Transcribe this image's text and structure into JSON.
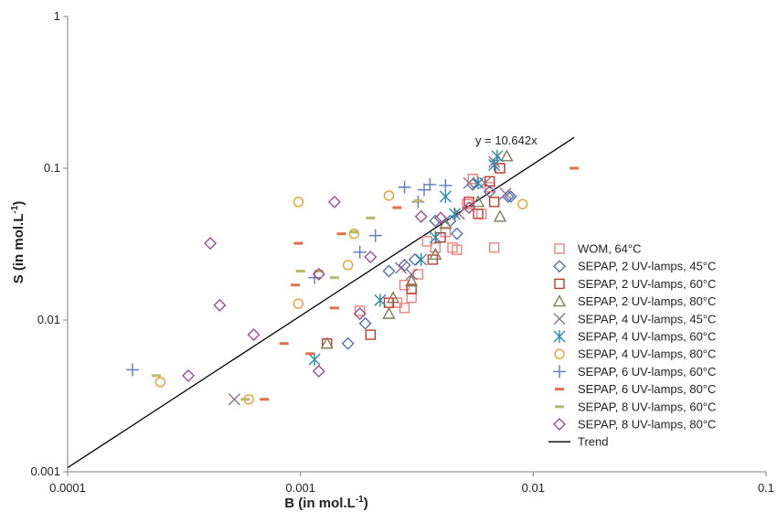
{
  "chart_data": {
    "type": "scatter",
    "x_scale": "log",
    "y_scale": "log",
    "xlim": [
      0.0001,
      0.1
    ],
    "ylim": [
      0.001,
      1
    ],
    "x_ticks": [
      "0.0001",
      "0.001",
      "0.01",
      "0.1"
    ],
    "y_ticks": [
      "0.001",
      "0.01",
      "0.1",
      "1"
    ],
    "xlabel": "B (in mol.L",
    "xlabel_sup": "-1",
    "xlabel_end": ")",
    "ylabel": "S (in mol.L",
    "ylabel_sup": "-1",
    "ylabel_end": ")",
    "grid": false,
    "legend_position": "bottom-right",
    "trend": {
      "name": "Trend",
      "slope": 10.642,
      "x_range": [
        0.0001,
        0.015
      ],
      "equation": "y = 10.642x",
      "color": "#000000"
    },
    "series": [
      {
        "name": "WOM, 64°C",
        "marker": "square",
        "color": "#f08080",
        "points": [
          [
            0.0018,
            0.0115
          ],
          [
            0.0026,
            0.013
          ],
          [
            0.0028,
            0.012
          ],
          [
            0.003,
            0.014
          ],
          [
            0.0032,
            0.02
          ],
          [
            0.0035,
            0.033
          ],
          [
            0.0038,
            0.03
          ],
          [
            0.0042,
            0.038
          ],
          [
            0.0045,
            0.03
          ],
          [
            0.0047,
            0.029
          ],
          [
            0.0052,
            0.058
          ],
          [
            0.0055,
            0.085
          ],
          [
            0.006,
            0.05
          ],
          [
            0.0065,
            0.075
          ],
          [
            0.0068,
            0.03
          ],
          [
            0.0072,
            0.1
          ],
          [
            0.0028,
            0.017
          ]
        ]
      },
      {
        "name": "SEPAP, 2 UV-lamps, 45°C",
        "marker": "diamond",
        "color": "#5a6fa8",
        "points": [
          [
            0.0016,
            0.007
          ],
          [
            0.0019,
            0.0095
          ],
          [
            0.0024,
            0.021
          ],
          [
            0.0028,
            0.023
          ],
          [
            0.0031,
            0.025
          ],
          [
            0.0038,
            0.045
          ],
          [
            0.0044,
            0.045
          ],
          [
            0.0047,
            0.037
          ],
          [
            0.0055,
            0.078
          ],
          [
            0.0065,
            0.07
          ],
          [
            0.0078,
            0.065
          ],
          [
            0.008,
            0.065
          ]
        ]
      },
      {
        "name": "SEPAP, 2 UV-lamps, 60°C",
        "marker": "square",
        "color": "#c0392b",
        "points": [
          [
            0.0013,
            0.007
          ],
          [
            0.002,
            0.008
          ],
          [
            0.0024,
            0.013
          ],
          [
            0.003,
            0.016
          ],
          [
            0.0037,
            0.025
          ],
          [
            0.004,
            0.035
          ],
          [
            0.0053,
            0.06
          ],
          [
            0.0058,
            0.05
          ],
          [
            0.0065,
            0.082
          ],
          [
            0.0072,
            0.1
          ],
          [
            0.0068,
            0.06
          ]
        ]
      },
      {
        "name": "SEPAP, 2 UV-lamps, 80°C",
        "marker": "triangle",
        "color": "#7f7f5a",
        "points": [
          [
            0.0013,
            0.007
          ],
          [
            0.0024,
            0.011
          ],
          [
            0.0025,
            0.014
          ],
          [
            0.003,
            0.018
          ],
          [
            0.0038,
            0.027
          ],
          [
            0.0042,
            0.043
          ],
          [
            0.0058,
            0.06
          ],
          [
            0.0072,
            0.048
          ],
          [
            0.0077,
            0.12
          ]
        ]
      },
      {
        "name": "SEPAP, 4 UV-lamps, 45°C",
        "marker": "x",
        "color": "#8e6f8e",
        "points": [
          [
            0.00052,
            0.003
          ],
          [
            0.0027,
            0.022
          ],
          [
            0.003,
            0.02
          ],
          [
            0.0048,
            0.05
          ],
          [
            0.0053,
            0.08
          ],
          [
            0.0062,
            0.08
          ],
          [
            0.0076,
            0.068
          ],
          [
            0.0068,
            0.11
          ]
        ]
      },
      {
        "name": "SEPAP, 4 UV-lamps, 60°C",
        "marker": "asterisk",
        "color": "#2a8aa8",
        "points": [
          [
            0.00115,
            0.0055
          ],
          [
            0.0022,
            0.0135
          ],
          [
            0.0033,
            0.025
          ],
          [
            0.0038,
            0.035
          ],
          [
            0.0042,
            0.065
          ],
          [
            0.0046,
            0.05
          ],
          [
            0.0058,
            0.08
          ],
          [
            0.0068,
            0.105
          ],
          [
            0.007,
            0.12
          ]
        ]
      },
      {
        "name": "SEPAP, 4 UV-lamps, 80°C",
        "marker": "circle",
        "color": "#e8a030",
        "points": [
          [
            0.00025,
            0.0039
          ],
          [
            0.0006,
            0.003
          ],
          [
            0.00098,
            0.06
          ],
          [
            0.00098,
            0.0128
          ],
          [
            0.0016,
            0.023
          ],
          [
            0.0017,
            0.037
          ],
          [
            0.0024,
            0.066
          ],
          [
            0.009,
            0.058
          ]
        ]
      },
      {
        "name": "SEPAP, 6 UV-lamps, 60°C",
        "marker": "plus",
        "color": "#5b7bbf",
        "points": [
          [
            0.00019,
            0.0047
          ],
          [
            0.00115,
            0.019
          ],
          [
            0.0018,
            0.028
          ],
          [
            0.0021,
            0.036
          ],
          [
            0.0028,
            0.075
          ],
          [
            0.0034,
            0.072
          ],
          [
            0.0036,
            0.078
          ],
          [
            0.0042,
            0.077
          ],
          [
            0.0032,
            0.06
          ]
        ]
      },
      {
        "name": "SEPAP, 6 UV-lamps, 80°C",
        "marker": "dash",
        "color": "#e0704a",
        "points": [
          [
            0.0007,
            0.003
          ],
          [
            0.00085,
            0.007
          ],
          [
            0.00095,
            0.017
          ],
          [
            0.00098,
            0.032
          ],
          [
            0.0011,
            0.006
          ],
          [
            0.0014,
            0.012
          ],
          [
            0.0015,
            0.037
          ],
          [
            0.0026,
            0.055
          ],
          [
            0.015,
            0.1
          ]
        ]
      },
      {
        "name": "SEPAP, 8 UV-lamps, 60°C",
        "marker": "dash",
        "color": "#b8b86a",
        "points": [
          [
            0.00024,
            0.0043
          ],
          [
            0.00058,
            0.003
          ],
          [
            0.001,
            0.021
          ],
          [
            0.0012,
            0.021
          ],
          [
            0.0014,
            0.019
          ],
          [
            0.0017,
            0.038
          ],
          [
            0.002,
            0.047
          ],
          [
            0.0032,
            0.061
          ]
        ]
      },
      {
        "name": "SEPAP, 8 UV-lamps, 80°C",
        "marker": "diamond",
        "color": "#9a4f8f",
        "points": [
          [
            0.00033,
            0.0043
          ],
          [
            0.00041,
            0.032
          ],
          [
            0.00045,
            0.0125
          ],
          [
            0.00063,
            0.008
          ],
          [
            0.0012,
            0.0046
          ],
          [
            0.0012,
            0.02
          ],
          [
            0.0014,
            0.06
          ],
          [
            0.0018,
            0.011
          ],
          [
            0.002,
            0.026
          ],
          [
            0.0033,
            0.048
          ],
          [
            0.004,
            0.047
          ],
          [
            0.0053,
            0.055
          ]
        ]
      }
    ]
  }
}
